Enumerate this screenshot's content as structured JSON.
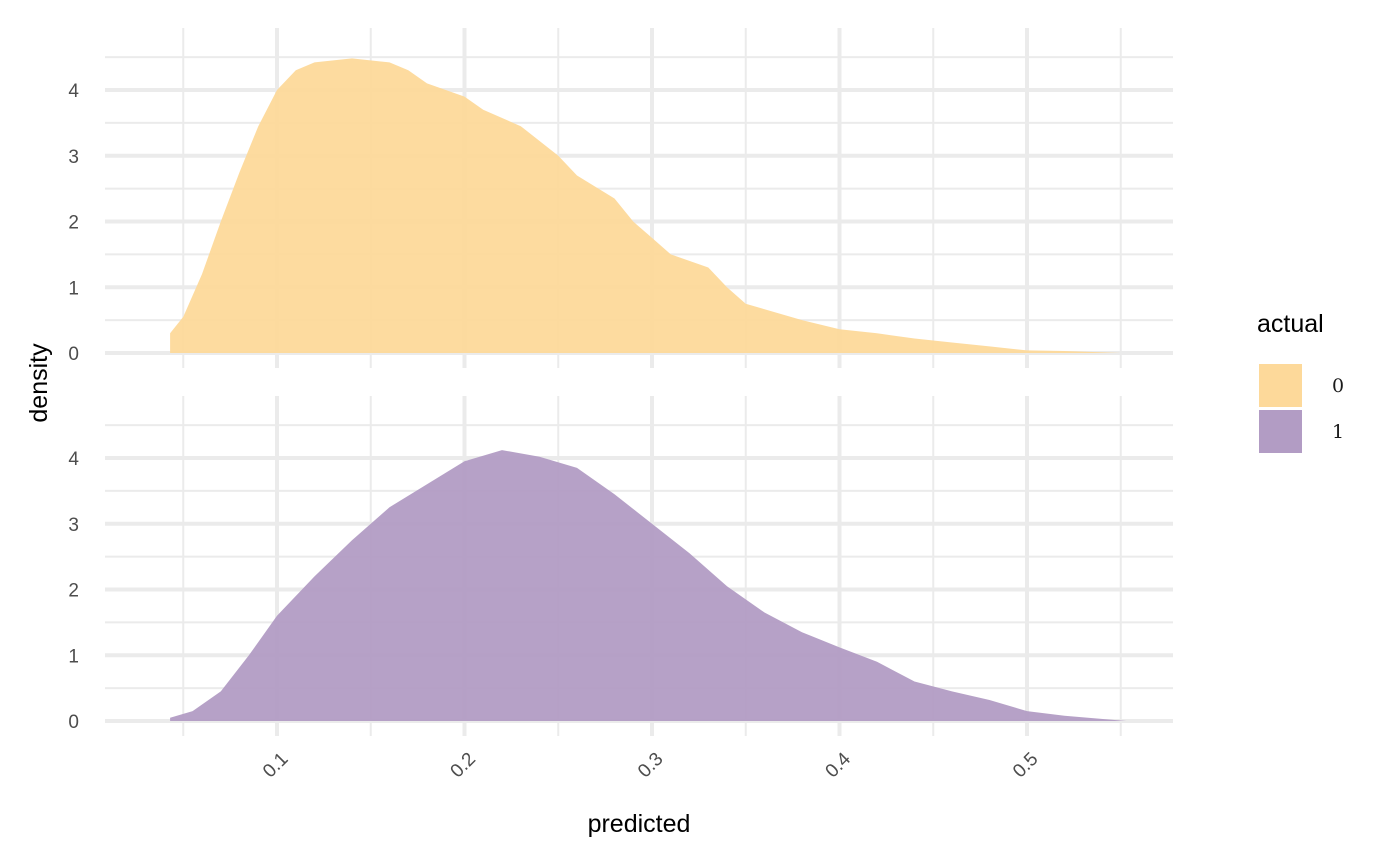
{
  "chart_data": {
    "type": "area",
    "subtype": "faceted-density",
    "x_label": "predicted",
    "y_label": "density",
    "xlim": [
      0.033,
      0.553
    ],
    "ylim": [
      0,
      4.95
    ],
    "x_ticks": [
      0.1,
      0.2,
      0.3,
      0.4,
      0.5
    ],
    "x_tick_labels": [
      "0.1",
      "0.2",
      "0.3",
      "0.4",
      "0.5"
    ],
    "y_ticks": [
      0,
      1,
      2,
      3,
      4
    ],
    "y_tick_labels": [
      "0",
      "1",
      "2",
      "3",
      "4"
    ],
    "grid": true,
    "legend": {
      "title": "actual",
      "position": "right",
      "entries": [
        {
          "label": "0",
          "color": "#fdd99a"
        },
        {
          "label": "1",
          "color": "#b29cc4"
        }
      ]
    },
    "series": [
      {
        "legend_label": "0",
        "color": "#fdd99a",
        "points": [
          [
            0.043,
            0.3
          ],
          [
            0.05,
            0.55
          ],
          [
            0.06,
            1.2
          ],
          [
            0.07,
            2.0
          ],
          [
            0.08,
            2.75
          ],
          [
            0.09,
            3.45
          ],
          [
            0.1,
            4.0
          ],
          [
            0.11,
            4.3
          ],
          [
            0.12,
            4.42
          ],
          [
            0.14,
            4.48
          ],
          [
            0.16,
            4.42
          ],
          [
            0.17,
            4.3
          ],
          [
            0.18,
            4.1
          ],
          [
            0.2,
            3.9
          ],
          [
            0.21,
            3.7
          ],
          [
            0.23,
            3.45
          ],
          [
            0.25,
            3.0
          ],
          [
            0.26,
            2.7
          ],
          [
            0.28,
            2.35
          ],
          [
            0.29,
            2.0
          ],
          [
            0.3,
            1.75
          ],
          [
            0.31,
            1.5
          ],
          [
            0.33,
            1.3
          ],
          [
            0.34,
            1.0
          ],
          [
            0.35,
            0.75
          ],
          [
            0.38,
            0.5
          ],
          [
            0.4,
            0.36
          ],
          [
            0.42,
            0.3
          ],
          [
            0.44,
            0.22
          ],
          [
            0.46,
            0.16
          ],
          [
            0.48,
            0.1
          ],
          [
            0.5,
            0.04
          ],
          [
            0.52,
            0.03
          ],
          [
            0.55,
            0.0
          ]
        ]
      },
      {
        "legend_label": "1",
        "color": "#b29cc4",
        "points": [
          [
            0.043,
            0.05
          ],
          [
            0.055,
            0.15
          ],
          [
            0.07,
            0.45
          ],
          [
            0.085,
            1.0
          ],
          [
            0.1,
            1.6
          ],
          [
            0.12,
            2.2
          ],
          [
            0.14,
            2.75
          ],
          [
            0.16,
            3.25
          ],
          [
            0.18,
            3.6
          ],
          [
            0.2,
            3.95
          ],
          [
            0.22,
            4.12
          ],
          [
            0.24,
            4.02
          ],
          [
            0.26,
            3.85
          ],
          [
            0.28,
            3.45
          ],
          [
            0.3,
            3.0
          ],
          [
            0.32,
            2.55
          ],
          [
            0.34,
            2.05
          ],
          [
            0.36,
            1.65
          ],
          [
            0.38,
            1.35
          ],
          [
            0.4,
            1.12
          ],
          [
            0.42,
            0.9
          ],
          [
            0.44,
            0.6
          ],
          [
            0.46,
            0.45
          ],
          [
            0.48,
            0.32
          ],
          [
            0.5,
            0.15
          ],
          [
            0.52,
            0.08
          ],
          [
            0.553,
            0.0
          ]
        ]
      }
    ]
  }
}
